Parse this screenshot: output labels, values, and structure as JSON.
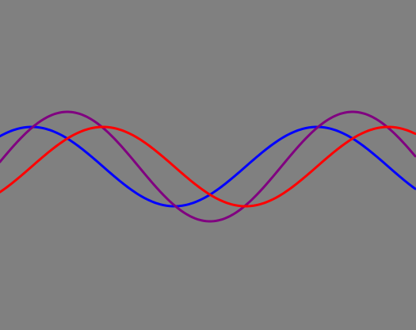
{
  "background_color": "#808080",
  "chart_data": {
    "type": "line",
    "title": "",
    "xlabel": "",
    "ylabel": "",
    "xlim": [
      0,
      525
    ],
    "ylim": [
      -1.5,
      1.5
    ],
    "grid": false,
    "axes_visible": false,
    "legend": "none",
    "series": [
      {
        "key": "blue",
        "color": "#0000FF",
        "amplitude": 0.5,
        "period": 360,
        "peak_x": 40,
        "points": [
          [
            0,
            0.32
          ],
          [
            40,
            0.5
          ],
          [
            130,
            0
          ],
          [
            220,
            -0.5
          ],
          [
            310,
            0
          ],
          [
            400,
            0.5
          ],
          [
            490,
            0
          ],
          [
            525,
            -0.19
          ]
        ]
      },
      {
        "key": "purple",
        "color": "#800080",
        "amplitude": 0.69,
        "period": 360,
        "peak_x": 85,
        "points": [
          [
            0,
            0.0
          ],
          [
            85,
            0.69
          ],
          [
            175,
            0
          ],
          [
            265,
            -0.69
          ],
          [
            355,
            0
          ],
          [
            445,
            0.69
          ],
          [
            525,
            0.07
          ]
        ]
      },
      {
        "key": "red",
        "color": "#FF0000",
        "amplitude": 0.5,
        "period": 360,
        "peak_x": 130,
        "points": [
          [
            0,
            -0.32
          ],
          [
            40,
            0
          ],
          [
            130,
            0.5
          ],
          [
            220,
            0
          ],
          [
            310,
            -0.5
          ],
          [
            400,
            0
          ],
          [
            490,
            0.5
          ],
          [
            525,
            0.44
          ]
        ]
      }
    ]
  }
}
